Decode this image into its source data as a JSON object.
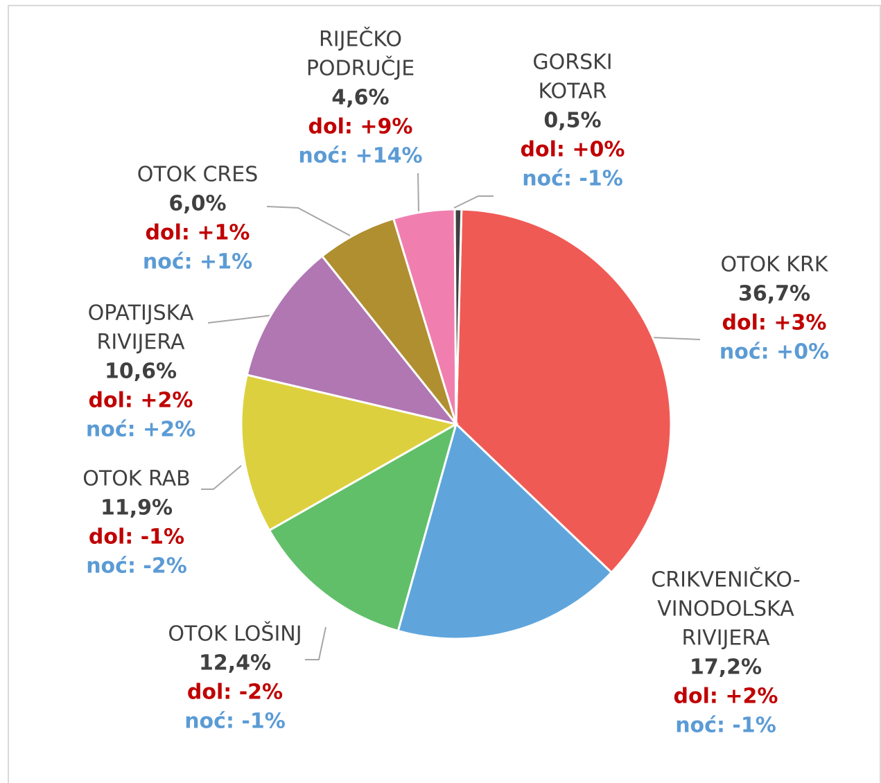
{
  "chart_data": {
    "type": "pie",
    "categories": [
      [
        "OTOK KRK"
      ],
      [
        "CRIKVENIČKO-",
        "VINODOLSKA",
        "RIVIJERA"
      ],
      [
        "OTOK LOŠINJ"
      ],
      [
        "OTOK RAB"
      ],
      [
        "OPATIJSKA",
        "RIVIJERA"
      ],
      [
        "OTOK CRES"
      ],
      [
        "RIJEČKO",
        "PODRUČJE"
      ],
      [
        "GORSKI",
        "KOTAR"
      ]
    ],
    "values": [
      36.7,
      17.2,
      12.4,
      11.9,
      10.6,
      6.0,
      4.6,
      0.5
    ],
    "value_labels": [
      "36,7%",
      "17,2%",
      "12,4%",
      "11,9%",
      "10,6%",
      "6,0%",
      "4,6%",
      "0,5%"
    ],
    "dol_labels": [
      "dol: +3%",
      "dol: +2%",
      "dol: -2%",
      "dol: -1%",
      "dol: +2%",
      "dol: +1%",
      "dol: +9%",
      "dol: +0%"
    ],
    "noc_labels": [
      "noć: +0%",
      "noć: -1%",
      "noć: -1%",
      "noć: -2%",
      "noć: +2%",
      "noć: +1%",
      "noć: +14%",
      "noć: -1%"
    ],
    "colors": [
      "#F05A55",
      "#5FA5DC",
      "#61BF6A",
      "#DDD03E",
      "#B077B3",
      "#B08F30",
      "#F07FB0",
      "#404040"
    ]
  }
}
